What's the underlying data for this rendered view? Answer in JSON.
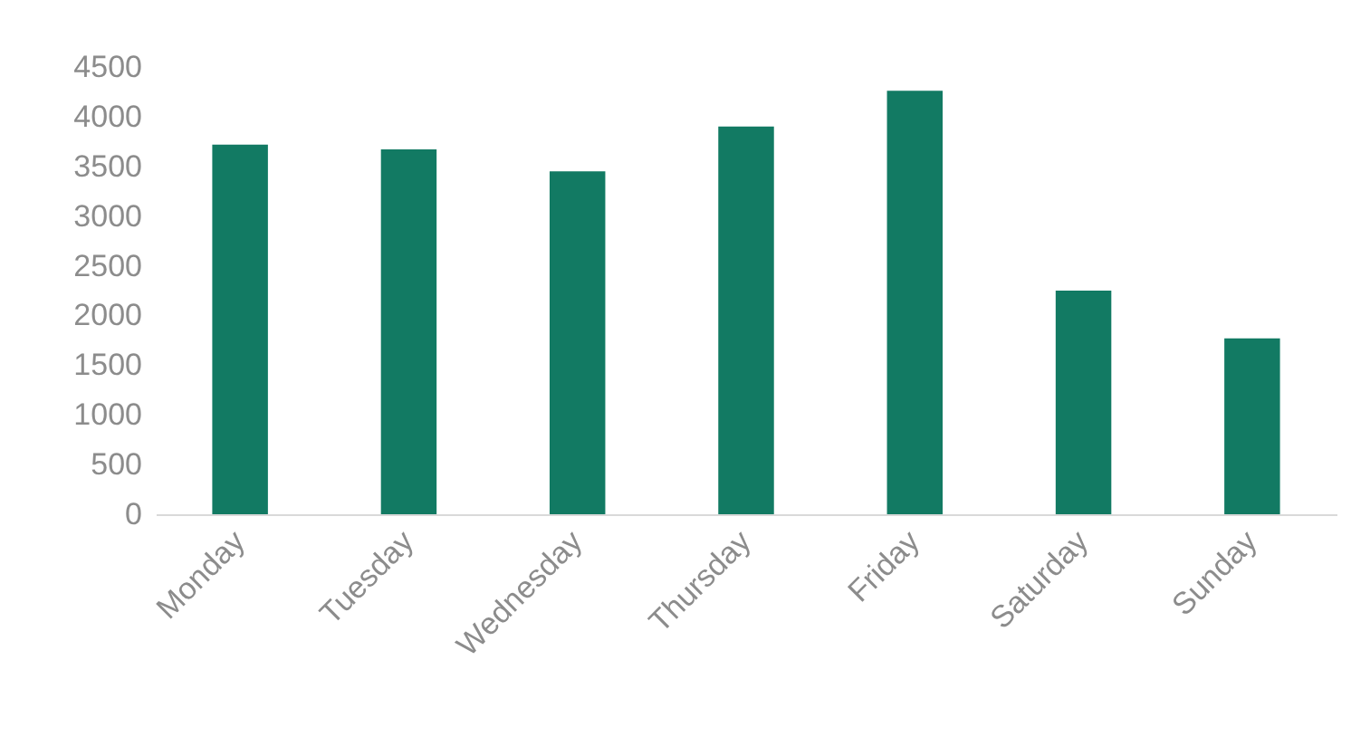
{
  "chart_data": {
    "type": "bar",
    "categories": [
      "Monday",
      "Tuesday",
      "Wednesday",
      "Thursday",
      "Friday",
      "Saturday",
      "Sunday"
    ],
    "values": [
      3720,
      3670,
      3450,
      3900,
      4260,
      2250,
      1770
    ],
    "color": "#127a63",
    "ylim": [
      0,
      4500
    ],
    "yticks": [
      0,
      500,
      1000,
      1500,
      2000,
      2500,
      3000,
      3500,
      4000,
      4500
    ],
    "grid": false
  }
}
